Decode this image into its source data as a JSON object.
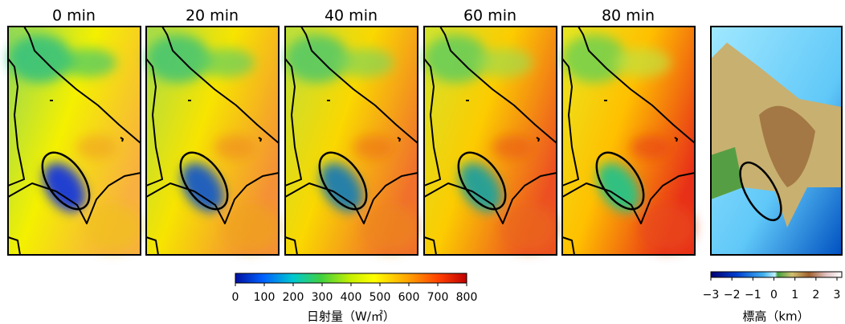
{
  "panels": [
    {
      "title": "0 min"
    },
    {
      "title": "20 min"
    },
    {
      "title": "40 min"
    },
    {
      "title": "60 min"
    },
    {
      "title": "80 min"
    }
  ],
  "solar_colorbar": {
    "range": [
      0,
      800
    ],
    "ticks": [
      0,
      100,
      200,
      300,
      400,
      500,
      600,
      700,
      800
    ],
    "label": "日射量（W/㎡）"
  },
  "elevation_colorbar": {
    "range": [
      -3,
      3
    ],
    "ticks": [
      {
        "value": -3,
        "label": "−3"
      },
      {
        "value": -2,
        "label": "−2"
      },
      {
        "value": -1,
        "label": "−1"
      },
      0,
      1,
      2,
      3
    ],
    "label": "標高（km）"
  }
}
